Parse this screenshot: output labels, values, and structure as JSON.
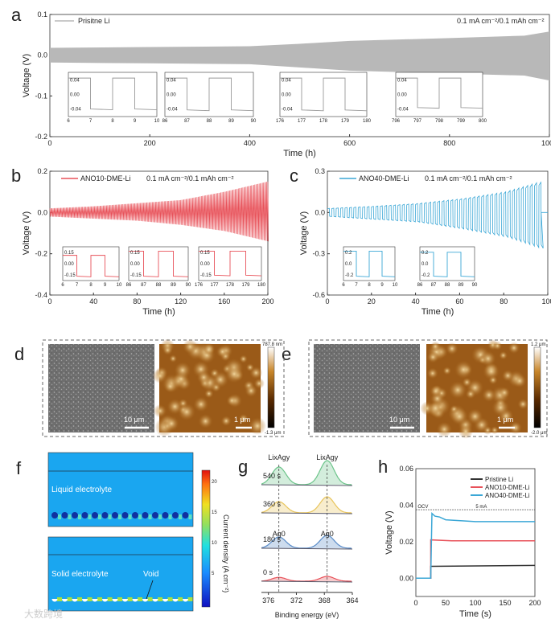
{
  "panels": {
    "a": "a",
    "b": "b",
    "c": "c",
    "d": "d",
    "e": "e",
    "f": "f",
    "g": "g",
    "h": "h"
  },
  "colors": {
    "pristine": "#b8b8b8",
    "ano10": "#e8525a",
    "ano40": "#3ba7d6",
    "black": "#333333"
  },
  "chart_data": [
    {
      "id": "a",
      "type": "line",
      "title": "",
      "legend": "Prisitne Li",
      "annotation": "0.1 mA cm⁻²/0.1 mAh cm⁻²",
      "xlabel": "Time (h)",
      "ylabel": "Voltage (V)",
      "xlim": [
        0,
        1000
      ],
      "ylim": [
        -0.2,
        0.1
      ],
      "xticks": [
        "0",
        "200",
        "400",
        "600",
        "800",
        "1000"
      ],
      "yticks": [
        "0.1",
        "0.0",
        "-0.1",
        "-0.2"
      ],
      "envelope_upper": [
        [
          0,
          0.018
        ],
        [
          200,
          0.02
        ],
        [
          400,
          0.022
        ],
        [
          500,
          0.028
        ],
        [
          600,
          0.035
        ],
        [
          800,
          0.042
        ],
        [
          950,
          0.048
        ],
        [
          1000,
          0.058
        ]
      ],
      "envelope_lower": [
        [
          0,
          -0.018
        ],
        [
          200,
          -0.02
        ],
        [
          400,
          -0.022
        ],
        [
          500,
          -0.03
        ],
        [
          600,
          -0.038
        ],
        [
          800,
          -0.045
        ],
        [
          950,
          -0.05
        ],
        [
          1000,
          -0.062
        ]
      ],
      "insets": [
        {
          "xlim": [
            6,
            10
          ],
          "xticks": [
            "6",
            "7",
            "8",
            "9",
            "10"
          ],
          "high": 0.018,
          "low": -0.016
        },
        {
          "xlim": [
            86,
            90
          ],
          "xticks": [
            "86",
            "87",
            "88",
            "89",
            "90"
          ],
          "high": 0.018,
          "low": -0.017
        },
        {
          "xlim": [
            176,
            180
          ],
          "xticks": [
            "176",
            "177",
            "178",
            "179",
            "180"
          ],
          "high": 0.019,
          "low": -0.018
        },
        {
          "xlim": [
            796,
            800
          ],
          "xticks": [
            "796",
            "797",
            "798",
            "799",
            "800"
          ],
          "high": 0.04,
          "low": -0.032
        }
      ],
      "inset_yticks": [
        "0.04",
        "0.00",
        "-0.04"
      ]
    },
    {
      "id": "b",
      "type": "line",
      "legend": "ANO10-DME-Li",
      "annotation": "0.1 mA cm⁻²/0.1 mAh cm⁻²",
      "xlabel": "Time (h)",
      "ylabel": "Voltage (V)",
      "xlim": [
        0,
        200
      ],
      "ylim": [
        -0.4,
        0.2
      ],
      "xticks": [
        "0",
        "40",
        "80",
        "120",
        "160",
        "200"
      ],
      "yticks": [
        "0.2",
        "0.0",
        "-0.2",
        "-0.4"
      ],
      "envelope_upper": [
        [
          0,
          0.02
        ],
        [
          40,
          0.03
        ],
        [
          80,
          0.045
        ],
        [
          120,
          0.06
        ],
        [
          160,
          0.1
        ],
        [
          200,
          0.15
        ]
      ],
      "envelope_lower": [
        [
          0,
          -0.02
        ],
        [
          40,
          -0.03
        ],
        [
          80,
          -0.04
        ],
        [
          120,
          -0.06
        ],
        [
          160,
          -0.09
        ],
        [
          200,
          -0.14
        ]
      ],
      "insets": [
        {
          "xlim": [
            6,
            10
          ],
          "xticks": [
            "6",
            "7",
            "8",
            "9",
            "10"
          ],
          "high": 0.02,
          "low": -0.03
        },
        {
          "xlim": [
            86,
            90
          ],
          "xticks": [
            "86",
            "87",
            "88",
            "89",
            "90"
          ],
          "high": 0.05,
          "low": -0.05
        },
        {
          "xlim": [
            176,
            180
          ],
          "xticks": [
            "176",
            "177",
            "178",
            "179",
            "180"
          ],
          "high": 0.13,
          "low": -0.12
        }
      ],
      "inset_yticks": [
        "0.15",
        "0.00",
        "-0.15"
      ]
    },
    {
      "id": "c",
      "type": "line",
      "legend": "ANO40-DME-Li",
      "annotation": "0.1 mA cm⁻²/0.1 mAh cm⁻²",
      "xlabel": "Time (h)",
      "ylabel": "Voltage (V)",
      "xlim": [
        0,
        100
      ],
      "ylim": [
        -0.6,
        0.3
      ],
      "xticks": [
        "0",
        "20",
        "40",
        "60",
        "80",
        "100"
      ],
      "yticks": [
        "0.3",
        "0.0",
        "-0.3",
        "-0.6"
      ],
      "envelope_upper": [
        [
          0,
          0.03
        ],
        [
          20,
          0.045
        ],
        [
          40,
          0.065
        ],
        [
          60,
          0.1
        ],
        [
          80,
          0.15
        ],
        [
          95,
          0.22
        ]
      ],
      "envelope_lower": [
        [
          0,
          -0.03
        ],
        [
          20,
          -0.05
        ],
        [
          40,
          -0.07
        ],
        [
          60,
          -0.12
        ],
        [
          80,
          -0.18
        ],
        [
          95,
          -0.26
        ]
      ],
      "end_time": 97,
      "insets": [
        {
          "xlim": [
            6,
            10
          ],
          "xticks": [
            "6",
            "7",
            "8",
            "9",
            "10"
          ],
          "high": 0.03,
          "low": -0.03
        },
        {
          "xlim": [
            86,
            90
          ],
          "xticks": [
            "86",
            "87",
            "88",
            "89",
            "90"
          ],
          "high": 0.2,
          "low": -0.22
        }
      ],
      "inset_yticks": [
        "0.2",
        "0.0",
        "-0.2"
      ]
    },
    {
      "id": "g",
      "type": "line",
      "xlabel": "Binding energy (eV)",
      "xlim": [
        377,
        364
      ],
      "xticks": [
        "376",
        "372",
        "368",
        "364"
      ],
      "peaks": [
        374.5,
        367.6
      ],
      "peak_labels_top": [
        "LixAgy",
        "LixAgy"
      ],
      "peak_labels_mid": [
        "Ag0",
        "Ag0"
      ],
      "series": [
        {
          "name": "540 s",
          "amplitudes": [
            0.55,
            0.75
          ],
          "color": "#6cc48a"
        },
        {
          "name": "360 s",
          "amplitudes": [
            0.35,
            0.5
          ],
          "color": "#e8c45a"
        },
        {
          "name": "180 s",
          "amplitudes": [
            0.35,
            0.4
          ],
          "color": "#5a8cc8"
        },
        {
          "name": "0 s",
          "amplitudes": [
            0.12,
            0.15
          ],
          "color": "#e8525a"
        }
      ]
    },
    {
      "id": "h",
      "type": "line",
      "xlabel": "Time (s)",
      "ylabel": "Voltage (V)",
      "xlim": [
        0,
        200
      ],
      "ylim": [
        -0.01,
        0.06
      ],
      "xticks": [
        "0",
        "50",
        "100",
        "150",
        "200"
      ],
      "yticks": [
        "0.06",
        "0.04",
        "0.02",
        "0.00"
      ],
      "annotations": [
        "OCV",
        "5 mA"
      ],
      "series": [
        {
          "name": "Pristine Li",
          "color": "#333333",
          "points": [
            [
              0,
              0
            ],
            [
              25,
              0
            ],
            [
              25,
              0.0065
            ],
            [
              200,
              0.007
            ]
          ]
        },
        {
          "name": "ANO10-DME-Li",
          "color": "#e8525a",
          "points": [
            [
              0,
              0
            ],
            [
              25,
              0
            ],
            [
              25,
              0.021
            ],
            [
              60,
              0.0205
            ],
            [
              200,
              0.0205
            ]
          ]
        },
        {
          "name": "ANO40-DME-Li",
          "color": "#3ba7d6",
          "points": [
            [
              0,
              0
            ],
            [
              25,
              0
            ],
            [
              27,
              0.0355
            ],
            [
              32,
              0.034
            ],
            [
              40,
              0.0335
            ],
            [
              50,
              0.032
            ],
            [
              100,
              0.031
            ],
            [
              200,
              0.031
            ]
          ]
        }
      ]
    }
  ],
  "images": {
    "d": {
      "sem_scale": "10 μm",
      "afm_scale": "1 μm",
      "cbar_max": "787.8 nm",
      "cbar_min": "-1.3 μm"
    },
    "e": {
      "sem_scale": "10 μm",
      "afm_scale": "1 μm",
      "cbar_max": "1.2 μm",
      "cbar_min": "-2.0 μm"
    }
  },
  "simulation": {
    "top_label": "Liquid electrolyte",
    "bottom_label": "Solid electrolyte",
    "void_label": "Void",
    "cbar_title": "Current density (A cm⁻²)",
    "cbar_ticks": [
      "20",
      "15",
      "10",
      "5"
    ]
  },
  "watermark": "大数跨境"
}
